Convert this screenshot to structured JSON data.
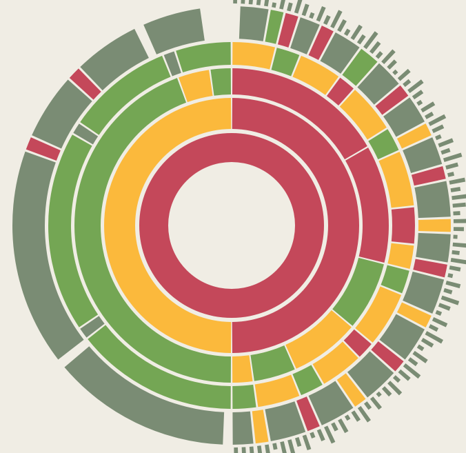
{
  "diagram": {
    "type": "sunburst",
    "colors": {
      "background": "#f0ede4",
      "red": "#c4485a",
      "orange": "#fbb93c",
      "green": "#74a654",
      "gray": "#7a8c74"
    },
    "rings": [
      {
        "level": 1,
        "segments": [
          {
            "color": "red",
            "start": 0,
            "end": 360
          }
        ]
      },
      {
        "level": 2,
        "segments": [
          {
            "color": "red",
            "start": 0,
            "end": 180
          },
          {
            "color": "orange",
            "start": 180,
            "end": 360
          }
        ]
      },
      {
        "level": 3,
        "segments": [
          {
            "color": "red",
            "start": 0,
            "end": 60
          },
          {
            "color": "red",
            "start": 60,
            "end": 104
          },
          {
            "color": "green",
            "start": 104,
            "end": 130
          },
          {
            "color": "orange",
            "start": 130,
            "end": 156
          },
          {
            "color": "green",
            "start": 156,
            "end": 172
          },
          {
            "color": "orange",
            "start": 172,
            "end": 180
          },
          {
            "color": "green",
            "start": 180,
            "end": 340
          },
          {
            "color": "orange",
            "start": 340,
            "end": 352
          },
          {
            "color": "green",
            "start": 352,
            "end": 360
          }
        ]
      },
      {
        "level": 4,
        "segments": [
          {
            "color": "orange",
            "start": 0,
            "end": 14
          },
          {
            "color": "green",
            "start": 14,
            "end": 22
          },
          {
            "color": "orange",
            "start": 22,
            "end": 36
          },
          {
            "color": "red",
            "start": 36,
            "end": 42
          },
          {
            "color": "orange",
            "start": 42,
            "end": 58
          },
          {
            "color": "green",
            "start": 58,
            "end": 66
          },
          {
            "color": "orange",
            "start": 66,
            "end": 84
          },
          {
            "color": "red",
            "start": 84,
            "end": 96
          },
          {
            "color": "orange",
            "start": 96,
            "end": 104
          },
          {
            "color": "green",
            "start": 104,
            "end": 112
          },
          {
            "color": "orange",
            "start": 112,
            "end": 130
          },
          {
            "color": "red",
            "start": 130,
            "end": 136
          },
          {
            "color": "orange",
            "start": 136,
            "end": 150
          },
          {
            "color": "green",
            "start": 150,
            "end": 158
          },
          {
            "color": "orange",
            "start": 158,
            "end": 172
          },
          {
            "color": "green",
            "start": 172,
            "end": 180
          },
          {
            "color": "green",
            "start": 180,
            "end": 232
          },
          {
            "color": "gray",
            "start": 232,
            "end": 236
          },
          {
            "color": "green",
            "start": 236,
            "end": 300
          },
          {
            "color": "gray",
            "start": 300,
            "end": 304
          },
          {
            "color": "green",
            "start": 304,
            "end": 338
          },
          {
            "color": "gray",
            "start": 338,
            "end": 342
          },
          {
            "color": "green",
            "start": 342,
            "end": 360
          }
        ]
      },
      {
        "level": 5,
        "segments": [
          {
            "color": "gray",
            "start": 2,
            "end": 10
          },
          {
            "color": "green",
            "start": 10,
            "end": 14
          },
          {
            "color": "red",
            "start": 14,
            "end": 18
          },
          {
            "color": "gray",
            "start": 18,
            "end": 24
          },
          {
            "color": "red",
            "start": 24,
            "end": 28
          },
          {
            "color": "gray",
            "start": 28,
            "end": 36
          },
          {
            "color": "green",
            "start": 36,
            "end": 42
          },
          {
            "color": "gray",
            "start": 42,
            "end": 50
          },
          {
            "color": "red",
            "start": 50,
            "end": 54
          },
          {
            "color": "gray",
            "start": 54,
            "end": 62
          },
          {
            "color": "orange",
            "start": 62,
            "end": 66
          },
          {
            "color": "gray",
            "start": 66,
            "end": 74
          },
          {
            "color": "red",
            "start": 74,
            "end": 78
          },
          {
            "color": "gray",
            "start": 78,
            "end": 88
          },
          {
            "color": "orange",
            "start": 88,
            "end": 92
          },
          {
            "color": "gray",
            "start": 92,
            "end": 100
          },
          {
            "color": "red",
            "start": 100,
            "end": 104
          },
          {
            "color": "gray",
            "start": 104,
            "end": 114
          },
          {
            "color": "orange",
            "start": 114,
            "end": 118
          },
          {
            "color": "gray",
            "start": 118,
            "end": 128
          },
          {
            "color": "red",
            "start": 128,
            "end": 132
          },
          {
            "color": "gray",
            "start": 132,
            "end": 142
          },
          {
            "color": "orange",
            "start": 142,
            "end": 146
          },
          {
            "color": "gray",
            "start": 146,
            "end": 156
          },
          {
            "color": "red",
            "start": 156,
            "end": 160
          },
          {
            "color": "gray",
            "start": 160,
            "end": 170
          },
          {
            "color": "orange",
            "start": 170,
            "end": 174
          },
          {
            "color": "gray",
            "start": 174,
            "end": 180
          },
          {
            "color": "gray",
            "start": 182,
            "end": 230
          },
          {
            "color": "gray",
            "start": 232,
            "end": 290
          },
          {
            "color": "red",
            "start": 290,
            "end": 294
          },
          {
            "color": "gray",
            "start": 294,
            "end": 312
          },
          {
            "color": "red",
            "start": 312,
            "end": 316
          },
          {
            "color": "gray",
            "start": 316,
            "end": 334
          },
          {
            "color": "gray",
            "start": 336,
            "end": 352
          }
        ]
      }
    ],
    "outer_ticks": {
      "color": "gray",
      "start": 0,
      "end": 180,
      "count": 90
    }
  }
}
